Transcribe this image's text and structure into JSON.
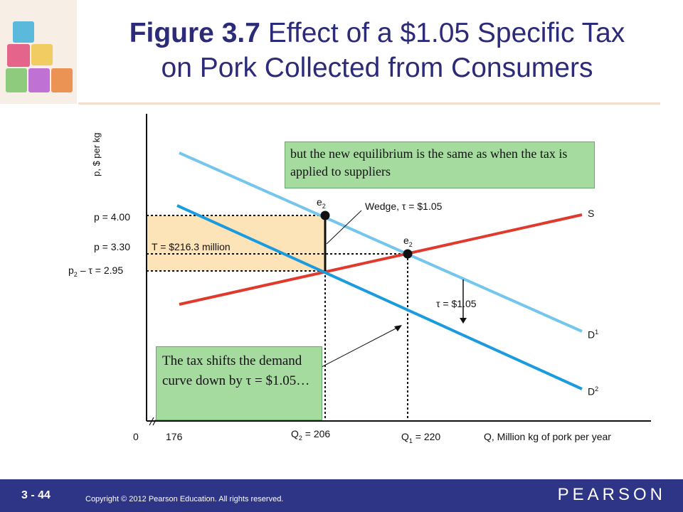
{
  "title": {
    "bold": "Figure 3.7",
    "line1_rest": " Effect of a $1.05 Specific Tax",
    "line2": "on Pork Collected from Consumers"
  },
  "axes": {
    "y_label": "p, $ per kg",
    "x_label": "Q, Million kg of pork per year",
    "origin": "0",
    "x_break_tick": "176"
  },
  "price_labels": {
    "p_high": "p = 4.00",
    "p_eq": "p = 3.30",
    "p_low_prefix": "p",
    "p_low_sub": "2",
    "p_low_rest": " – τ = 2.95"
  },
  "quantity_labels": {
    "q2_prefix": "Q",
    "q2_sub": "2",
    "q2_rest": " = 206",
    "q1_prefix": "Q",
    "q1_sub": "1",
    "q1_rest": " = 220"
  },
  "annotations": {
    "tax_revenue": "T = $216.3 million",
    "wedge": "Wedge, τ = $1.05",
    "tau": "τ = $1.05",
    "e2_top_base": "e",
    "e2_top_sub": "2",
    "e2_mid_base": "e",
    "e2_mid_sub": "2",
    "supply": "S",
    "d1_base": "D",
    "d1_sup": "1",
    "d2_base": "D",
    "d2_sup": "2"
  },
  "callouts": {
    "top": "but the new equilibrium is the same as when the tax is applied to suppliers",
    "bottom": "The tax shifts the demand curve down by τ = $1.05…"
  },
  "footer": {
    "page": "3 - 44",
    "copyright": "Copyright © 2012  Pearson Education. All rights reserved.",
    "brand": "PEARSON"
  },
  "colors": {
    "supply": "#e03a2c",
    "demand1": "#74c6ec",
    "demand2": "#1a9be0",
    "tax_area": "#fde3b8",
    "callout": "#a6dba0",
    "title": "#2b2b7a",
    "footer": "#2e3486"
  }
}
